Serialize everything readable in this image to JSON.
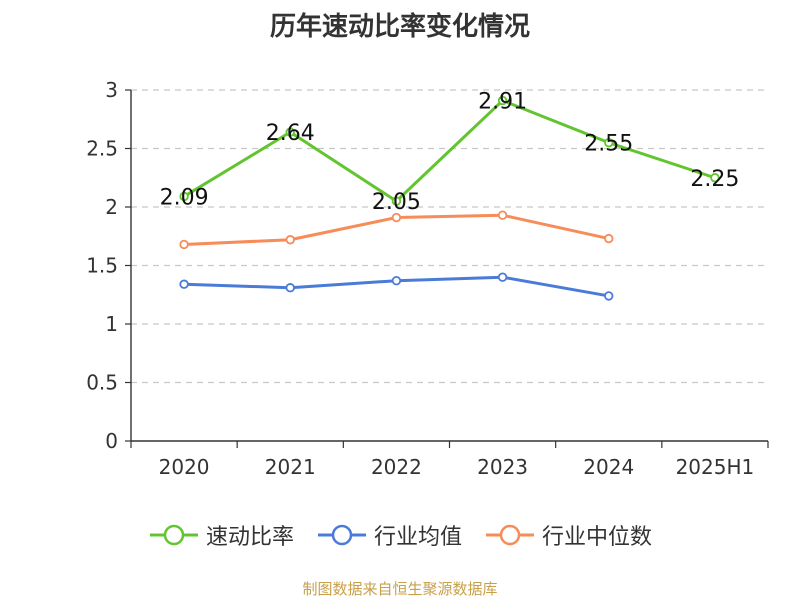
{
  "title": "历年速动比率变化情况",
  "source_note": "制图数据来自恒生聚源数据库",
  "legend": [
    {
      "name": "速动比率",
      "color": "#62c52f"
    },
    {
      "name": "行业均值",
      "color": "#4a7bd8"
    },
    {
      "name": "行业中位数",
      "color": "#f78c58"
    }
  ],
  "chart_data": {
    "type": "line",
    "title": "历年速动比率变化情况",
    "xlabel": "",
    "ylabel": "",
    "categories": [
      "2020",
      "2021",
      "2022",
      "2023",
      "2024",
      "2025H1"
    ],
    "ylim": [
      0,
      3
    ],
    "yticks": [
      "0",
      "0.5",
      "1",
      "1.5",
      "2",
      "2.5",
      "3"
    ],
    "grid": true,
    "legend_position": "bottom",
    "series": [
      {
        "name": "速动比率",
        "color": "#62c52f",
        "values": [
          2.09,
          2.64,
          2.05,
          2.91,
          2.55,
          2.25
        ],
        "labels": [
          "2.09",
          "2.64",
          "2.05",
          "2.91",
          "2.55",
          "2.25"
        ],
        "show_labels": true
      },
      {
        "name": "行业均值",
        "color": "#4a7bd8",
        "values": [
          1.34,
          1.31,
          1.37,
          1.4,
          1.24,
          null
        ],
        "show_labels": false
      },
      {
        "name": "行业中位数",
        "color": "#f78c58",
        "values": [
          1.68,
          1.72,
          1.91,
          1.93,
          1.73,
          null
        ],
        "show_labels": false
      }
    ]
  }
}
